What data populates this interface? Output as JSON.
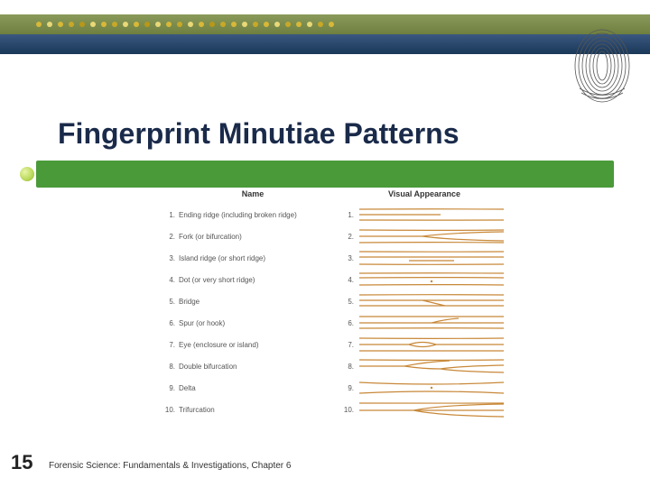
{
  "banner": {
    "dot_colors": [
      "#d8b838",
      "#e8d878",
      "#d8b838",
      "#c8a828",
      "#b89818",
      "#e8d878",
      "#d8b838",
      "#c8a828",
      "#e8d878",
      "#d8b838",
      "#b89818",
      "#e8d878",
      "#d8b838",
      "#c8a828",
      "#e8d878",
      "#d8b838",
      "#b89818",
      "#c8a828",
      "#d8b838",
      "#e8d878",
      "#c8a828",
      "#d8b838",
      "#e8d878",
      "#c8a828",
      "#d8b838",
      "#e8d878",
      "#c8a828",
      "#d8b838"
    ]
  },
  "title": "Fingerprint Minutiae Patterns",
  "table": {
    "headers": {
      "name": "Name",
      "visual": "Visual Appearance"
    },
    "rows": [
      {
        "n": "1.",
        "name": "Ending ridge (including broken ridge)",
        "n2": "1."
      },
      {
        "n": "2.",
        "name": "Fork (or bifurcation)",
        "n2": "2."
      },
      {
        "n": "3.",
        "name": "Island ridge (or short ridge)",
        "n2": "3."
      },
      {
        "n": "4.",
        "name": "Dot (or very short ridge)",
        "n2": "4."
      },
      {
        "n": "5.",
        "name": "Bridge",
        "n2": "5."
      },
      {
        "n": "6.",
        "name": "Spur (or hook)",
        "n2": "6."
      },
      {
        "n": "7.",
        "name": "Eye (enclosure or island)",
        "n2": "7."
      },
      {
        "n": "8.",
        "name": "Double bifurcation",
        "n2": "8."
      },
      {
        "n": "9.",
        "name": "Delta",
        "n2": "9."
      },
      {
        "n": "10.",
        "name": "Trifurcation",
        "n2": "10."
      }
    ]
  },
  "page_number": "15",
  "footer": "Forensic Science: Fundamentals & Investigations, Chapter 6",
  "colors": {
    "ridge": "#c88838",
    "green_bar": "#4a9a3a",
    "title": "#1a2a4a"
  }
}
